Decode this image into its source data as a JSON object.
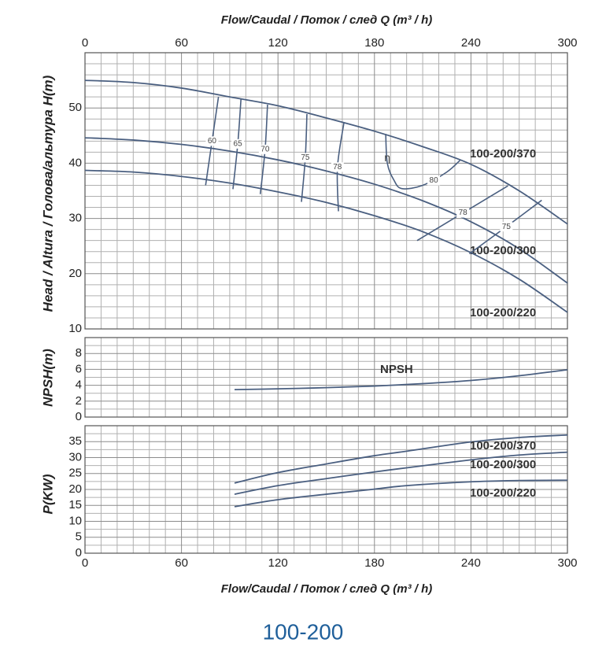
{
  "chart_data": [
    {
      "type": "line",
      "x_label": "Flow/Caudal  /  Поток / след   Q (m³ / h)",
      "y_label": "Head / Altura  /  Голова/альтура H(m)",
      "xlim": [
        0,
        300
      ],
      "xticks": [
        0,
        60,
        120,
        180,
        240,
        300
      ],
      "ylim": [
        10,
        60
      ],
      "yticks": [
        10,
        20,
        30,
        40,
        50
      ],
      "grid": true,
      "x": [
        0,
        30,
        60,
        90,
        120,
        150,
        180,
        210,
        240,
        270,
        300
      ],
      "series": [
        {
          "name": "100-200/370",
          "color": "#4a5f80",
          "values": [
            55,
            54.6,
            53.6,
            52.0,
            50.4,
            48.2,
            45.8,
            43.0,
            39.8,
            35.0,
            29.0
          ]
        },
        {
          "name": "100-200/300",
          "color": "#4a5f80",
          "values": [
            44.6,
            44.2,
            43.4,
            42.2,
            40.6,
            38.6,
            36.2,
            33.2,
            29.4,
            24.5,
            18.3
          ]
        },
        {
          "name": "100-200/220",
          "color": "#4a5f80",
          "values": [
            38.7,
            38.4,
            37.6,
            36.4,
            34.8,
            32.9,
            30.5,
            27.6,
            23.8,
            19.0,
            13.0
          ]
        }
      ],
      "efficiency_symbol": "η",
      "efficiency_curves": [
        {
          "name": "60",
          "x": [
            83,
            79,
            75
          ],
          "y": [
            52,
            44,
            36
          ]
        },
        {
          "name": "65",
          "x": [
            97,
            95,
            92
          ],
          "y": [
            51.6,
            43.5,
            35.3
          ]
        },
        {
          "name": "70",
          "x": [
            113.5,
            112,
            109
          ],
          "y": [
            50.6,
            42.5,
            34.4
          ]
        },
        {
          "name": "75",
          "x": [
            138,
            137,
            134.6
          ],
          "y": [
            48.9,
            41,
            33
          ]
        },
        {
          "name": "78",
          "x": [
            161,
            157,
            157.6
          ],
          "y": [
            47.3,
            39.3,
            31.3
          ]
        },
        {
          "name": "80",
          "x": [
            187,
            188,
            192,
            197,
            210,
            225,
            233.5
          ],
          "y": [
            45.3,
            40,
            37,
            35.4,
            36,
            38.4,
            40.6
          ]
        },
        {
          "name": "78",
          "x": [
            263,
            235,
            206.5
          ],
          "y": [
            35.9,
            31,
            26
          ]
        },
        {
          "name": "75",
          "x": [
            284,
            262,
            239
          ],
          "y": [
            33.3,
            28.5,
            23.6
          ]
        }
      ]
    },
    {
      "type": "line",
      "y_label": "NPSH(m)",
      "xlim": [
        0,
        300
      ],
      "xticks": [
        0,
        60,
        120,
        180,
        240,
        300
      ],
      "ylim": [
        0,
        10
      ],
      "yticks": [
        0,
        2,
        4,
        6,
        8
      ],
      "grid": true,
      "x": [
        93,
        120,
        150,
        180,
        210,
        240,
        270,
        300
      ],
      "series": [
        {
          "name": "NPSH",
          "color": "#4a5f80",
          "values": [
            3.45,
            3.55,
            3.7,
            3.9,
            4.2,
            4.6,
            5.2,
            5.95
          ]
        }
      ]
    },
    {
      "type": "line",
      "x_label": "Flow/Caudal  /  Поток / след   Q (m³ / h)",
      "y_label": "P(KW)",
      "xlim": [
        0,
        300
      ],
      "xticks": [
        0,
        60,
        120,
        180,
        240,
        300
      ],
      "ylim": [
        0,
        40
      ],
      "yticks": [
        0,
        5,
        10,
        15,
        20,
        25,
        30,
        35
      ],
      "grid": true,
      "x": [
        93,
        120,
        150,
        180,
        200,
        240,
        270,
        300
      ],
      "series": [
        {
          "name": "100-200/370",
          "color": "#4a5f80",
          "values": [
            22,
            25.3,
            28,
            30.6,
            32,
            34.9,
            36.3,
            37.1
          ]
        },
        {
          "name": "100-200/300",
          "color": "#4a5f80",
          "values": [
            18.5,
            21.2,
            23.4,
            25.5,
            26.8,
            29.3,
            30.8,
            31.7
          ]
        },
        {
          "name": "100-200/220",
          "color": "#4a5f80",
          "values": [
            14.6,
            16.8,
            18.5,
            20.1,
            21.2,
            22.4,
            22.8,
            22.9
          ]
        }
      ]
    }
  ],
  "footer": "100-200"
}
